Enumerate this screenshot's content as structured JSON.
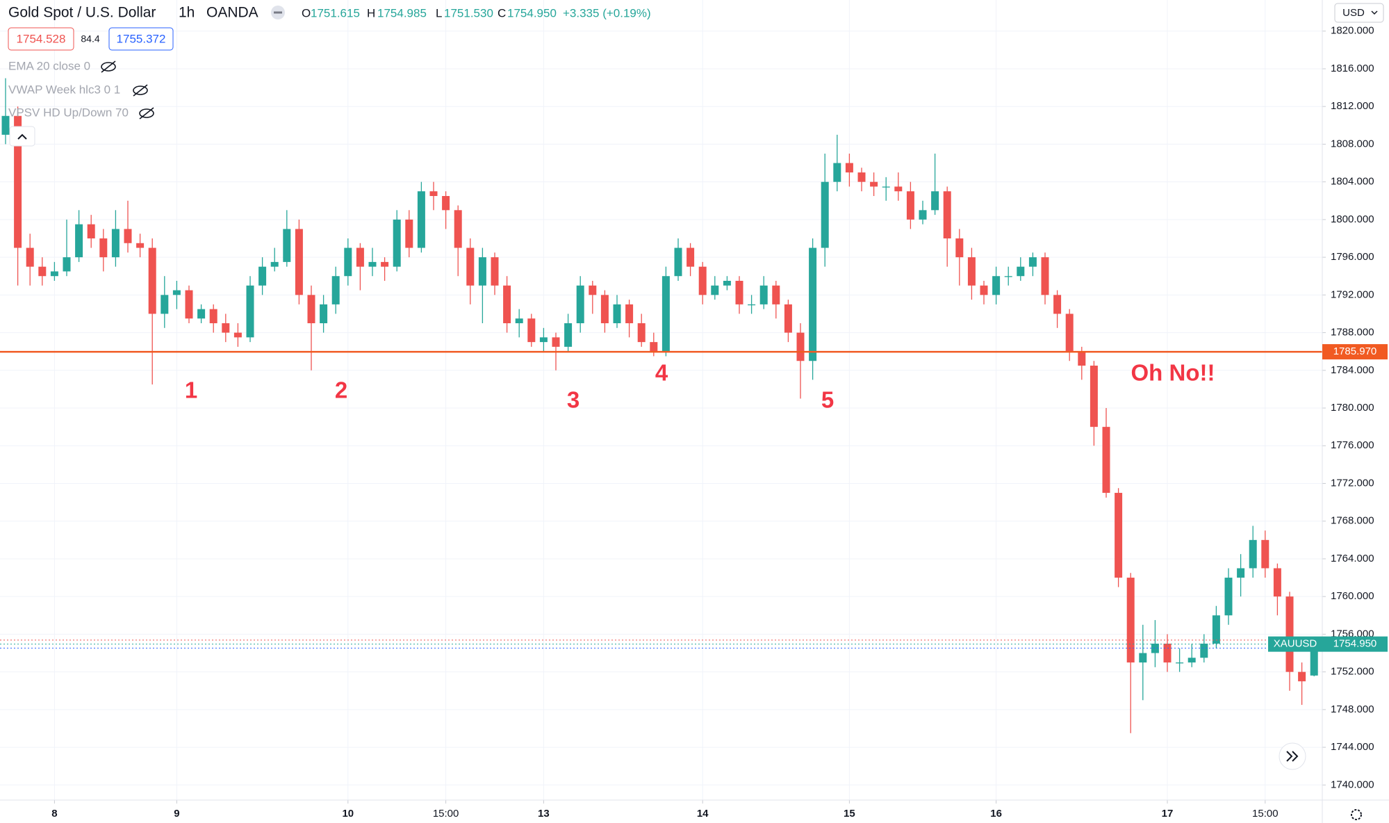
{
  "header": {
    "symbol": "Gold Spot / U.S. Dollar",
    "interval": "1h",
    "source": "OANDA",
    "ohlc": [
      {
        "key": "O",
        "value": "1751.615"
      },
      {
        "key": "H",
        "value": "1754.985"
      },
      {
        "key": "L",
        "value": "1751.530"
      },
      {
        "key": "C",
        "value": "1754.950"
      }
    ],
    "change": "+3.335 (+0.19%)",
    "bid": "1754.528",
    "spread": "84.4",
    "ask": "1755.372"
  },
  "indicators": [
    "EMA 20 close 0",
    "VWAP Week hlc3 0 1",
    "VPSV HD Up/Down 70"
  ],
  "currency": "USD",
  "chart_data": {
    "type": "candlestick",
    "categories": [
      null,
      null,
      null,
      null,
      "8",
      null,
      null,
      null,
      null,
      null,
      null,
      null,
      null,
      null,
      "9",
      null,
      null,
      null,
      null,
      null,
      null,
      null,
      null,
      null,
      null,
      null,
      null,
      null,
      "10",
      null,
      null,
      null,
      null,
      null,
      null,
      null,
      "15:00",
      null,
      null,
      null,
      null,
      null,
      null,
      null,
      "13",
      null,
      null,
      null,
      null,
      null,
      null,
      null,
      null,
      null,
      null,
      null,
      null,
      "14",
      null,
      null,
      null,
      null,
      null,
      null,
      null,
      null,
      null,
      null,
      null,
      "15",
      null,
      null,
      null,
      null,
      null,
      null,
      null,
      null,
      null,
      null,
      null,
      "16",
      null,
      null,
      null,
      null,
      null,
      null,
      null,
      null,
      null,
      null,
      null,
      null,
      null,
      "17",
      null,
      null,
      null,
      null,
      null,
      null,
      null,
      "15:00",
      null,
      null,
      null,
      null
    ],
    "open": [
      1809,
      1811,
      1797,
      1795,
      1794,
      1794.5,
      1796,
      1799.5,
      1798,
      1796,
      1799,
      1797.5,
      1797,
      1790,
      1792,
      1792.5,
      1789.5,
      1790.5,
      1789,
      1788,
      1787.5,
      1793,
      1795,
      1795.5,
      1799,
      1792,
      1789,
      1791,
      1794,
      1797,
      1795,
      1795.5,
      1795,
      1800,
      1797,
      1803,
      1802.5,
      1801,
      1797,
      1793,
      1796,
      1793,
      1789,
      1789.5,
      1787,
      1787.5,
      1786.5,
      1789,
      1793,
      1792,
      1789,
      1791,
      1789,
      1787,
      1786,
      1794,
      1797,
      1795,
      1792,
      1793,
      1793.5,
      1791,
      1791,
      1793,
      1791,
      1788,
      1785,
      1797,
      1804,
      1806,
      1805,
      1804,
      1803.5,
      1803.5,
      1803,
      1800,
      1801,
      1803,
      1798,
      1796,
      1793,
      1792,
      1794,
      1794,
      1795,
      1796,
      1792,
      1790,
      1786,
      1784.5,
      1778,
      1771,
      1762,
      1753,
      1754,
      1755,
      1753,
      1753,
      1753.5,
      1755,
      1758,
      1762,
      1763,
      1766,
      1763,
      1760,
      1752,
      1751.615
    ],
    "high": [
      1815,
      1812,
      1798.5,
      1796,
      1795.5,
      1800,
      1801,
      1800.5,
      1799,
      1801,
      1802,
      1798.5,
      1798,
      1794,
      1793.5,
      1793,
      1791,
      1791,
      1790,
      1789,
      1794,
      1796,
      1797,
      1801,
      1800,
      1793,
      1792,
      1795,
      1798,
      1797.5,
      1797,
      1796,
      1801,
      1801,
      1804,
      1804,
      1803,
      1801.5,
      1798,
      1797,
      1796.5,
      1794,
      1790.5,
      1790,
      1788.5,
      1788,
      1790,
      1794,
      1793.5,
      1792.5,
      1792,
      1791.5,
      1790,
      1788,
      1795,
      1798,
      1797.5,
      1795.5,
      1794,
      1794,
      1794,
      1792,
      1794,
      1793.5,
      1791.5,
      1789,
      1798,
      1807,
      1809,
      1807,
      1805.5,
      1805,
      1804.5,
      1805,
      1804,
      1802,
      1807,
      1803.5,
      1799,
      1797,
      1793.5,
      1795,
      1795,
      1796,
      1796.5,
      1796.5,
      1792.5,
      1790.5,
      1786.5,
      1785,
      1780,
      1771.5,
      1762.5,
      1757,
      1757.5,
      1756,
      1754.5,
      1755,
      1756,
      1759,
      1763,
      1764.5,
      1767.5,
      1767,
      1763.5,
      1760.5,
      1753,
      1754.985
    ],
    "low": [
      1808,
      1793,
      1793,
      1793,
      1793.5,
      1794,
      1795.5,
      1797,
      1794.5,
      1795,
      1796.5,
      1796,
      1782.5,
      1788.5,
      1790.5,
      1789,
      1789,
      1788,
      1787,
      1786.5,
      1787,
      1792,
      1794.5,
      1795,
      1791,
      1784,
      1788,
      1790,
      1793,
      1792.5,
      1794,
      1793.5,
      1794.5,
      1796,
      1796.5,
      1801,
      1799,
      1794,
      1791,
      1789,
      1792,
      1788,
      1787.5,
      1786.5,
      1786,
      1784,
      1786,
      1788,
      1790,
      1788,
      1788.5,
      1787.5,
      1786.5,
      1785.5,
      1785.5,
      1793.5,
      1794,
      1791,
      1791.5,
      1792.5,
      1790,
      1790,
      1790.5,
      1789.5,
      1787,
      1781,
      1783,
      1795,
      1803,
      1803.5,
      1803,
      1802.5,
      1802,
      1802,
      1799,
      1799.5,
      1800.5,
      1795,
      1793,
      1791.5,
      1791,
      1791,
      1793,
      1793.5,
      1794,
      1791,
      1788.5,
      1785,
      1783,
      1776,
      1770.5,
      1761,
      1745.5,
      1749,
      1752.5,
      1752,
      1752,
      1752.5,
      1753,
      1754.5,
      1757,
      1760,
      1762,
      1762,
      1758,
      1750,
      1748.5,
      1751.53
    ],
    "close": [
      1811,
      1797,
      1795,
      1794,
      1794.5,
      1796,
      1799.5,
      1798,
      1796,
      1799,
      1797.5,
      1797,
      1790,
      1792,
      1792.5,
      1789.5,
      1790.5,
      1789,
      1788,
      1787.5,
      1793,
      1795,
      1795.5,
      1799,
      1792,
      1789,
      1791,
      1794,
      1797,
      1795,
      1795.5,
      1795,
      1800,
      1797,
      1803,
      1802.5,
      1801,
      1797,
      1793,
      1796,
      1793,
      1789,
      1789.5,
      1787,
      1787.5,
      1786.5,
      1789,
      1793,
      1792,
      1789,
      1791,
      1789,
      1787,
      1786,
      1794,
      1797,
      1795,
      1792,
      1793,
      1793.5,
      1791,
      1791,
      1793,
      1791,
      1788,
      1785,
      1797,
      1804,
      1806,
      1805,
      1804,
      1803.5,
      1803.5,
      1803,
      1800,
      1801,
      1803,
      1798,
      1796,
      1793,
      1792,
      1794,
      1794,
      1795,
      1796,
      1792,
      1790,
      1786,
      1784.5,
      1778,
      1771,
      1762,
      1753,
      1754,
      1755,
      1753,
      1753,
      1753.5,
      1755,
      1758,
      1762,
      1763,
      1766,
      1763,
      1760,
      1752,
      1751,
      1754.95
    ],
    "up_color": "#26a69a",
    "down_color": "#ef5350",
    "ylim": [
      1738.4,
      1823.3
    ],
    "yticks": [
      {
        "value": 1740,
        "label": "1740.000"
      },
      {
        "value": 1744,
        "label": "1744.000"
      },
      {
        "value": 1748,
        "label": "1748.000"
      },
      {
        "value": 1752,
        "label": "1752.000"
      },
      {
        "value": 1756,
        "label": "1756.000"
      },
      {
        "value": 1760,
        "label": "1760.000"
      },
      {
        "value": 1764,
        "label": "1764.000"
      },
      {
        "value": 1768,
        "label": "1768.000"
      },
      {
        "value": 1772,
        "label": "1772.000"
      },
      {
        "value": 1776,
        "label": "1776.000"
      },
      {
        "value": 1780,
        "label": "1780.000"
      },
      {
        "value": 1784,
        "label": "1784.000"
      },
      {
        "value": 1788,
        "label": "1788.000"
      },
      {
        "value": 1792,
        "label": "1792.000"
      },
      {
        "value": 1796,
        "label": "1796.000"
      },
      {
        "value": 1800,
        "label": "1800.000"
      },
      {
        "value": 1804,
        "label": "1804.000"
      },
      {
        "value": 1808,
        "label": "1808.000"
      },
      {
        "value": 1812,
        "label": "1812.000"
      },
      {
        "value": 1816,
        "label": "1816.000"
      },
      {
        "value": 1820,
        "label": "1820.000"
      }
    ],
    "grid": true,
    "level": {
      "value": 1785.97,
      "label": "1785.970",
      "color": "#f15a22"
    },
    "last_price": {
      "name": "XAUUSD",
      "value": 1754.95,
      "label": "1754.950",
      "color": "#26a69a"
    },
    "bid_ask": [
      {
        "value": 1754.528,
        "color": "#2962ff"
      },
      {
        "value": 1755.372,
        "color": "#ef5350"
      }
    ],
    "annotations": [
      {
        "text": "1"
      },
      {
        "text": "2"
      },
      {
        "text": "3"
      },
      {
        "text": "4"
      },
      {
        "text": "5"
      },
      {
        "text": "Oh No!!"
      }
    ],
    "annotation_color": "#f23645"
  }
}
